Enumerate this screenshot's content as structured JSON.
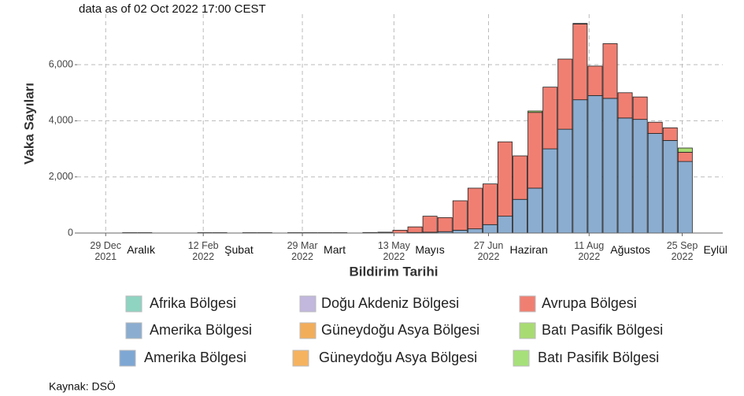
{
  "chart_data": {
    "type": "bar",
    "stacked": true,
    "subtitle": "data as of 02 Oct 2022 17:00 CEST",
    "y_label": "Vaka Sayıları",
    "x_label": "Bildirim Tarihi",
    "source": "Kaynak: DSÖ",
    "categories": [
      null,
      null,
      null,
      null,
      null,
      null,
      null,
      null,
      null,
      null,
      null,
      null,
      null,
      null,
      null,
      null,
      null,
      null,
      null,
      null,
      null,
      null,
      null,
      null,
      null,
      null,
      null,
      null,
      null,
      null,
      null,
      null,
      null,
      null,
      null,
      null,
      null,
      null,
      null,
      null,
      null,
      null,
      null
    ],
    "series": [
      {
        "name": "Afrika  Bölgesi",
        "color": "#8fd3c1",
        "values": [
          0,
          0,
          0,
          0,
          0,
          0,
          0,
          0,
          0,
          0,
          0,
          0,
          0,
          0,
          0,
          0,
          0,
          0,
          0,
          0,
          0,
          0,
          0,
          0,
          0,
          0,
          0,
          0,
          0,
          0,
          0,
          0,
          0,
          0,
          0,
          0,
          0,
          0,
          0,
          0,
          0,
          0,
          0
        ]
      },
      {
        "name": "Doğu Akdeniz Bölgesi",
        "color": "#c2b7dd",
        "values": [
          0,
          0,
          0,
          0,
          0,
          0,
          0,
          0,
          0,
          0,
          0,
          0,
          0,
          0,
          0,
          0,
          0,
          0,
          0,
          0,
          0,
          0,
          0,
          0,
          0,
          0,
          0,
          0,
          0,
          0,
          0,
          0,
          0,
          0,
          0,
          0,
          0,
          0,
          0,
          0,
          0,
          0,
          0
        ]
      },
      {
        "name": "Avrupa Bölgesi",
        "color": "#f07f72",
        "values": [
          0,
          0,
          0,
          10,
          10,
          0,
          0,
          0,
          10,
          10,
          0,
          10,
          10,
          0,
          10,
          10,
          10,
          10,
          0,
          15,
          20,
          100,
          200,
          570,
          500,
          1050,
          1450,
          1450,
          2650,
          1550,
          2700,
          2200,
          2500,
          2700,
          1050,
          1950,
          900,
          800,
          400,
          450,
          330,
          0,
          0
        ]
      },
      {
        "name": "Amerika  Bölgesi",
        "color": "#8badd0",
        "values": [
          0,
          0,
          0,
          5,
          5,
          0,
          0,
          0,
          5,
          5,
          0,
          5,
          5,
          0,
          5,
          5,
          5,
          5,
          0,
          5,
          10,
          0,
          20,
          30,
          50,
          100,
          150,
          300,
          600,
          1200,
          1600,
          3000,
          3700,
          4750,
          4900,
          4800,
          4100,
          4050,
          3550,
          3300,
          2550,
          0,
          0
        ]
      },
      {
        "name": "Güneydoğu Asya Bölgesi",
        "color": "#f2ad5a",
        "values": [
          0,
          0,
          0,
          0,
          0,
          0,
          0,
          0,
          0,
          0,
          0,
          0,
          0,
          0,
          0,
          0,
          0,
          0,
          0,
          0,
          0,
          0,
          0,
          0,
          0,
          0,
          0,
          0,
          0,
          0,
          0,
          0,
          0,
          0,
          0,
          0,
          0,
          0,
          0,
          0,
          0,
          0,
          0
        ]
      },
      {
        "name": "Batı Pasifik Bölgesi",
        "color": "#a9db73",
        "values": [
          0,
          0,
          0,
          0,
          0,
          0,
          0,
          0,
          0,
          0,
          0,
          0,
          0,
          0,
          0,
          0,
          0,
          0,
          0,
          0,
          0,
          0,
          0,
          0,
          0,
          0,
          0,
          0,
          0,
          0,
          50,
          0,
          0,
          20,
          0,
          0,
          0,
          0,
          0,
          0,
          150,
          0,
          0
        ]
      }
    ],
    "legend_repeat": [
      {
        "name": "Amerika  Bölgesi",
        "color": "#7ea7d4"
      },
      {
        "name": "Güneydoğu Asya Bölgesi",
        "color": "#f6b35f"
      },
      {
        "name": "Batı Pasifik Bölgesi",
        "color": "#a6e07a"
      }
    ],
    "ylim": [
      0,
      7800
    ],
    "yticks": [
      0,
      {
        "value": 2000,
        "label": "2,000"
      },
      {
        "value": 4000,
        "label": "4,000"
      },
      {
        "value": 6000,
        "label": "6,000"
      }
    ],
    "xlim": [
      0,
      43
    ],
    "xticks": [
      {
        "value": 1.9,
        "label": "29 Dec 2021"
      },
      {
        "value": 8.4,
        "label": "12 Feb 2022"
      },
      {
        "value": 15.0,
        "label": "29 Mar 2022"
      },
      {
        "value": 21.1,
        "label": "13 May 2022"
      },
      {
        "value": 27.4,
        "label": "27 Jun 2022"
      },
      {
        "value": 34.1,
        "label": "11 Aug 2022"
      },
      {
        "value": 40.3,
        "label": "25 Sep 2022"
      }
    ],
    "month_labels": [
      "Aralık",
      "Şubat",
      "Mart",
      "Mayıs",
      "Haziran",
      "Ağustos",
      "Eylül"
    ],
    "grid": true
  }
}
